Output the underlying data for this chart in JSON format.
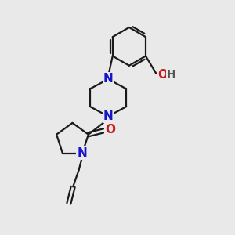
{
  "bg_color": "#e9e9e9",
  "bond_color": "#1a1a1a",
  "N_color": "#1515cc",
  "O_color": "#cc1515",
  "line_width": 1.6,
  "figsize": [
    3.0,
    3.0
  ],
  "dpi": 100,
  "xlim": [
    0,
    10
  ],
  "ylim": [
    0,
    10
  ]
}
